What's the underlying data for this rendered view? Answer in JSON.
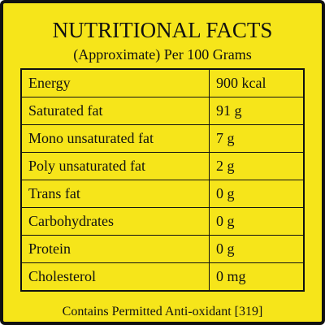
{
  "header": {
    "title": "NUTRITIONAL FACTS",
    "subtitle": "(Approximate) Per 100 Grams"
  },
  "table": {
    "rows": [
      [
        "Energy",
        "900 kcal"
      ],
      [
        "Saturated fat",
        "91 g"
      ],
      [
        "Mono unsaturated fat",
        "7 g"
      ],
      [
        "Poly unsaturated fat",
        "2 g"
      ],
      [
        "Trans fat",
        "0 g"
      ],
      [
        "Carbohydrates",
        "0 g"
      ],
      [
        "Protein",
        "0 g"
      ],
      [
        "Cholesterol",
        "0 mg"
      ]
    ]
  },
  "footer": "Contains Permitted Anti-oxidant [319]"
}
